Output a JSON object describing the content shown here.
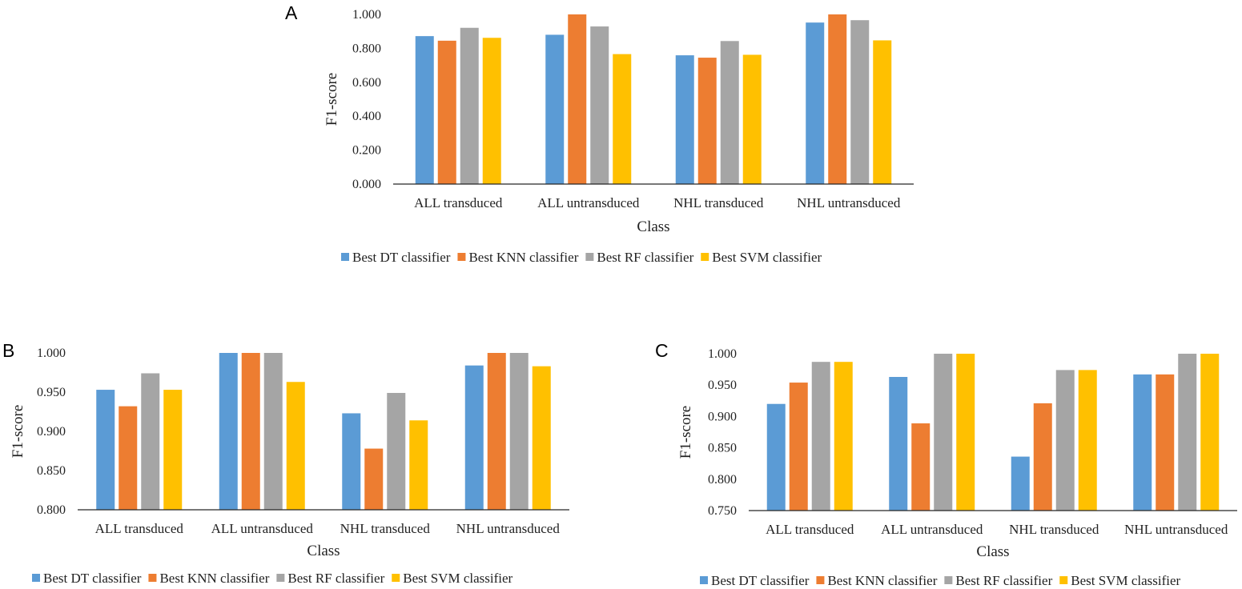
{
  "colors": {
    "dt": "#5b9bd5",
    "knn": "#ed7d31",
    "rf": "#a5a5a5",
    "svm": "#ffc000"
  },
  "chart_data": [
    {
      "panel": "A",
      "type": "bar",
      "categories": [
        "ALL transduced",
        "ALL untransduced",
        "NHL transduced",
        "NHL untransduced"
      ],
      "series": [
        {
          "name": "Best DT classifier",
          "key": "dt",
          "values": [
            0.872,
            0.88,
            0.759,
            0.952
          ]
        },
        {
          "name": "Best KNN classifier",
          "key": "knn",
          "values": [
            0.845,
            1.0,
            0.745,
            1.0
          ]
        },
        {
          "name": "Best RF classifier",
          "key": "rf",
          "values": [
            0.921,
            0.929,
            0.843,
            0.966
          ]
        },
        {
          "name": "Best SVM classifier",
          "key": "svm",
          "values": [
            0.862,
            0.766,
            0.762,
            0.847
          ]
        }
      ],
      "yticks": [
        "0.000",
        "0.200",
        "0.400",
        "0.600",
        "0.800",
        "1.000"
      ],
      "ylim": [
        0,
        1
      ],
      "xlabel": "Class",
      "ylabel": "F1-score",
      "legend_position": "bottom"
    },
    {
      "panel": "B",
      "type": "bar",
      "categories": [
        "ALL transduced",
        "ALL untransduced",
        "NHL transduced",
        "NHL untransduced"
      ],
      "series": [
        {
          "name": "Best DT classifier",
          "key": "dt",
          "values": [
            0.953,
            1.0,
            0.923,
            0.984
          ]
        },
        {
          "name": "Best KNN classifier",
          "key": "knn",
          "values": [
            0.932,
            1.0,
            0.878,
            1.0
          ]
        },
        {
          "name": "Best RF classifier",
          "key": "rf",
          "values": [
            0.974,
            1.0,
            0.949,
            1.0
          ]
        },
        {
          "name": "Best SVM classifier",
          "key": "svm",
          "values": [
            0.953,
            0.963,
            0.914,
            0.983
          ]
        }
      ],
      "yticks": [
        "0.800",
        "0.850",
        "0.900",
        "0.950",
        "1.000"
      ],
      "ylim": [
        0.8,
        1
      ],
      "xlabel": "Class",
      "ylabel": "F1-score",
      "legend_position": "bottom"
    },
    {
      "panel": "C",
      "type": "bar",
      "categories": [
        "ALL transduced",
        "ALL untransduced",
        "NHL transduced",
        "NHL untransduced"
      ],
      "series": [
        {
          "name": "Best DT classifier",
          "key": "dt",
          "values": [
            0.92,
            0.963,
            0.836,
            0.967
          ]
        },
        {
          "name": "Best KNN classifier",
          "key": "knn",
          "values": [
            0.954,
            0.889,
            0.921,
            0.967
          ]
        },
        {
          "name": "Best RF classifier",
          "key": "rf",
          "values": [
            0.987,
            1.0,
            0.974,
            1.0
          ]
        },
        {
          "name": "Best SVM classifier",
          "key": "svm",
          "values": [
            0.987,
            1.0,
            0.974,
            1.0
          ]
        }
      ],
      "yticks": [
        "0.750",
        "0.800",
        "0.850",
        "0.900",
        "0.950",
        "1.000"
      ],
      "ylim": [
        0.75,
        1
      ],
      "xlabel": "Class",
      "ylabel": "F1-score",
      "legend_position": "bottom"
    }
  ]
}
